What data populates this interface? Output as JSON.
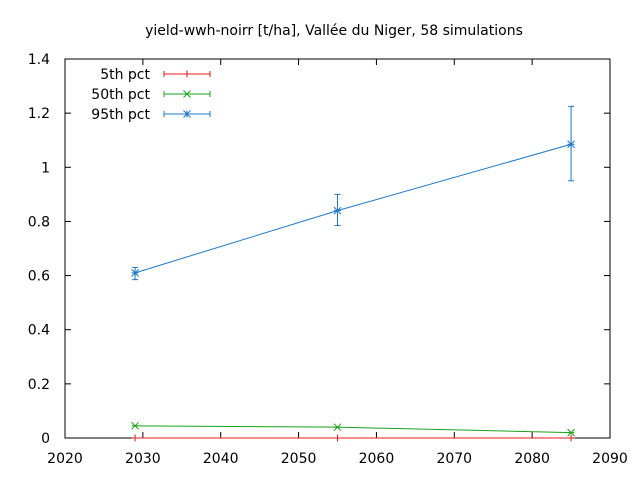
{
  "chart_data": {
    "type": "line",
    "title": "yield-wwh-noirr [t/ha], Vallée du Niger, 58 simulations",
    "xlabel": "",
    "ylabel": "",
    "xlim": [
      2020,
      2090
    ],
    "ylim": [
      0,
      1.4
    ],
    "x_ticks": [
      "2020",
      "2030",
      "2040",
      "2050",
      "2060",
      "2070",
      "2080",
      "2090"
    ],
    "y_ticks": [
      "0",
      "0.2",
      "0.4",
      "0.6",
      "0.8",
      "1",
      "1.2",
      "1.4"
    ],
    "grid": false,
    "legend_position": "top-left",
    "series": [
      {
        "name": "5th pct",
        "color": "#e41a1c",
        "marker": "plus",
        "points": [
          {
            "x": 2029,
            "y": 0.0,
            "low": 0.0,
            "high": 0.0
          },
          {
            "x": 2055,
            "y": 0.0,
            "low": 0.0,
            "high": 0.0
          },
          {
            "x": 2085,
            "y": 0.0,
            "low": 0.0,
            "high": 0.0
          }
        ]
      },
      {
        "name": "50th pct",
        "color": "#1aa31a",
        "marker": "x",
        "points": [
          {
            "x": 2029,
            "y": 0.045,
            "low": 0.045,
            "high": 0.045
          },
          {
            "x": 2055,
            "y": 0.04,
            "low": 0.04,
            "high": 0.04
          },
          {
            "x": 2085,
            "y": 0.02,
            "low": 0.02,
            "high": 0.02
          }
        ]
      },
      {
        "name": "95th pct",
        "color": "#1f78c8",
        "marker": "star",
        "points": [
          {
            "x": 2029,
            "y": 0.61,
            "low": 0.585,
            "high": 0.63
          },
          {
            "x": 2055,
            "y": 0.84,
            "low": 0.785,
            "high": 0.9
          },
          {
            "x": 2085,
            "y": 1.085,
            "low": 0.95,
            "high": 1.225
          }
        ]
      }
    ]
  }
}
